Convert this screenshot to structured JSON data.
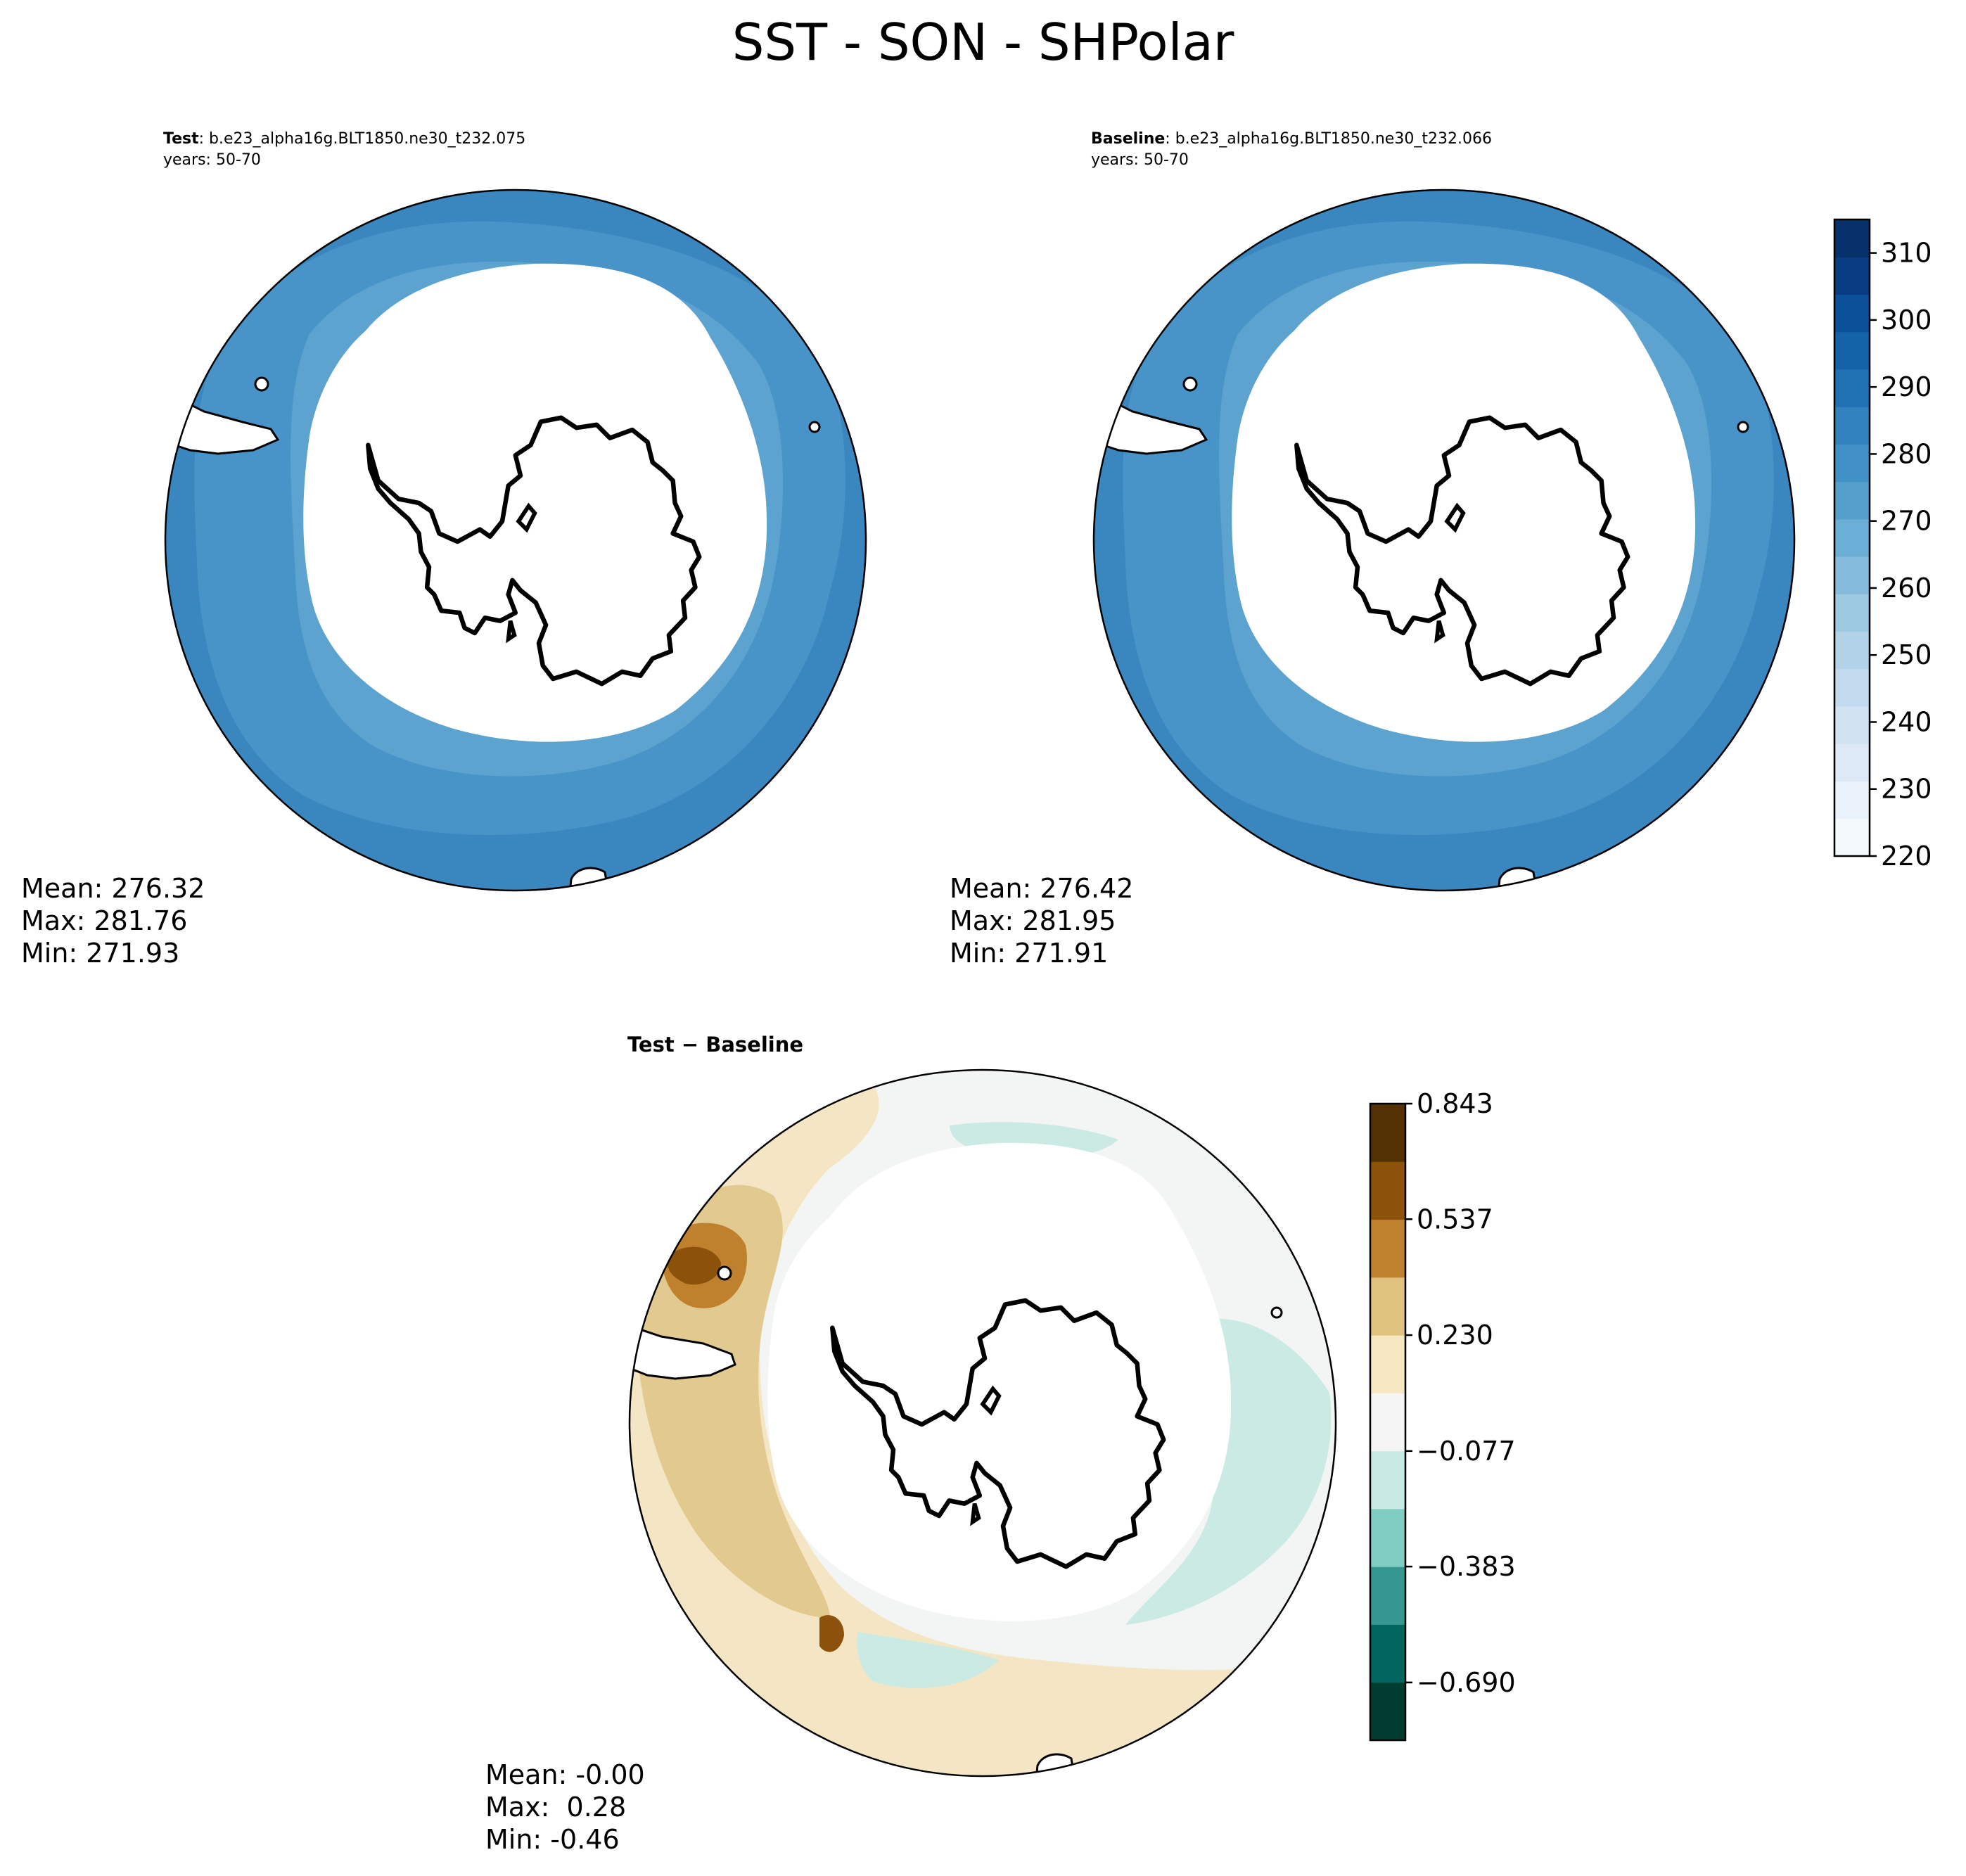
{
  "title": "SST - SON - SHPolar",
  "panels": {
    "test": {
      "label": "Test",
      "case": "b.e23_alpha16g.BLT1850.ne30_t232.075",
      "years": "years: 50-70",
      "stats": {
        "mean": "Mean: 276.32",
        "max": "Max: 281.76",
        "min": "Min: 271.93"
      }
    },
    "baseline": {
      "label": "Baseline",
      "case": "b.e23_alpha16g.BLT1850.ne30_t232.066",
      "years": "years: 50-70",
      "stats": {
        "mean": "Mean: 276.42",
        "max": "Max: 281.95",
        "min": "Min: 271.91"
      }
    },
    "diff": {
      "label": "Test − Baseline",
      "stats": {
        "mean": "Mean: -0.00",
        "max": "Max:  0.28",
        "min": "Min: -0.46"
      }
    }
  },
  "chart_data": [
    {
      "type": "heatmap",
      "projection": "south-polar-stereographic",
      "panel": "Test",
      "colorbar": {
        "min": 220,
        "max": 315,
        "tick_values": [
          220,
          230,
          240,
          250,
          260,
          270,
          280,
          290,
          300,
          310
        ],
        "tick_labels": [
          "220",
          "230",
          "240",
          "250",
          "260",
          "270",
          "280",
          "290",
          "300",
          "310"
        ],
        "colors": [
          "#f4f9fe",
          "#e9f2fa",
          "#dde9f6",
          "#d1e3f2",
          "#c3daee",
          "#b2d2e8",
          "#9dc9e1",
          "#85bcdb",
          "#6baed6",
          "#559fcd",
          "#4191c6",
          "#3182bd",
          "#2171b5",
          "#1462a8",
          "#0b5199",
          "#083e81",
          "#08306b"
        ]
      },
      "field_bands": {
        "near_ice": 271.93,
        "mid": 276.32,
        "outer": 281.76
      }
    },
    {
      "type": "heatmap",
      "projection": "south-polar-stereographic",
      "panel": "Baseline",
      "field_bands": {
        "near_ice": 271.91,
        "mid": 276.42,
        "outer": 281.95
      }
    },
    {
      "type": "heatmap",
      "projection": "south-polar-stereographic",
      "panel": "Test − Baseline",
      "colorbar": {
        "min": -0.843,
        "max": 0.843,
        "tick_values": [
          0.843,
          0.537,
          0.23,
          -0.077,
          -0.383,
          -0.69
        ],
        "tick_labels": [
          "0.843",
          "0.537",
          "0.230",
          "−0.077",
          "−0.383",
          "−0.690"
        ],
        "colors": [
          "#003c30",
          "#01665e",
          "#35978f",
          "#80cdc1",
          "#c7eae5",
          "#f5f5f5",
          "#f6e8c3",
          "#dfc27d",
          "#bf812d",
          "#8c510a",
          "#543005"
        ]
      }
    }
  ],
  "colors": {
    "land": "#ffffff",
    "coast": "#000000",
    "blue_outer": "#3a87c0",
    "blue_mid": "#4894c8",
    "blue_inner": "#5ca3d0",
    "diff_brown": "#e2c98f",
    "diff_tan": "#f4e6c4",
    "diff_teal": "#cbeae4",
    "diff_neutral": "#f3f5f4"
  }
}
